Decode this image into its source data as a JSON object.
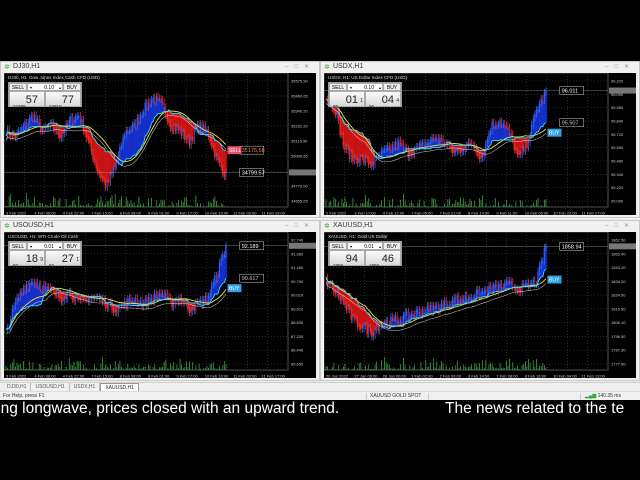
{
  "colors": {
    "bull": "#1430c8",
    "bear": "#c81414",
    "tenkan": "#f0e040",
    "kijun": "#40d8f0",
    "volume": "#40a040",
    "sell": "#e8506a",
    "buy": "#30a0e0"
  },
  "charts": [
    {
      "window_title": "DJ30,H1",
      "symbol_line": "DJ30, H1:  Dow Jones Index Cash CFD (USD)",
      "lot": "0.10",
      "sell_label": "SELL",
      "buy_label": "BUY",
      "sell_price": {
        "pre": "34799",
        "big": "57",
        "sup": ""
      },
      "buy_price": {
        "pre": "34810",
        "big": "77",
        "sup": ""
      },
      "y_axis": [
        "35575.90",
        "35460.65",
        "35346.20",
        "35231.20",
        "35115.90",
        "35000.60",
        "34885.30",
        "34770.00",
        "34655.25"
      ],
      "x_axis": [
        "3 Feb 2022",
        "4 Feb 06:00",
        "4 Feb 22:00",
        "7 Feb 15:00",
        "8 Feb 08:00",
        "9 Feb 01:00",
        "9 Feb 17:00",
        "10 Feb 10:00",
        "11 Feb 03:00",
        "11 Feb 19:00"
      ],
      "price_label": "34799.57",
      "order_label": "35175.58",
      "order_tag": "SELL",
      "order_type": "sell"
    },
    {
      "window_title": "USDX,H1",
      "symbol_line": "USDX, H1:  US Dollar Index CFD (USD)",
      "lot": "0.10",
      "sell_label": "SELL",
      "buy_label": "BUY",
      "sell_price": {
        "pre": "96",
        "big": "01",
        "sup": "1"
      },
      "buy_price": {
        "pre": "96",
        "big": "04",
        "sup": "4"
      },
      "y_axis": [
        "96.220",
        "96.090",
        "95.960",
        "95.840",
        "95.720",
        "95.590",
        "95.460",
        "95.340",
        "95.220",
        "95.090"
      ],
      "x_axis": [
        "2 Feb 2022",
        "3 Feb 17:00",
        "4 Feb 12:00",
        "7 Feb 05:00",
        "7 Feb 21:00",
        "8 Feb 14:00",
        "9 Feb 11:00",
        "10 Feb 05:00",
        "10 Feb 22:00",
        "11 Feb 17:00"
      ],
      "price_label": "96.011",
      "order_label": "95.507",
      "order_tag": "BUY",
      "order_type": "buy"
    },
    {
      "window_title": "USOUSD,H1",
      "symbol_line": "USOUSD, H1:  WTI Crude Oil Cash",
      "lot": "0.01",
      "sell_label": "SELL",
      "buy_label": "BUY",
      "sell_price": {
        "pre": "92",
        "big": "18",
        "sup": "9"
      },
      "buy_price": {
        "pre": "92",
        "big": "27",
        "sup": "1"
      },
      "y_axis": [
        "92.740",
        "91.960",
        "91.180",
        "90.790",
        "90.010",
        "89.610",
        "88.830",
        "87.230",
        "86.440",
        "85.650"
      ],
      "x_axis": [
        "3 Feb 2022",
        "4 Feb 06:00",
        "4 Feb 22:00",
        "7 Feb 15:00",
        "8 Feb 08:00",
        "9 Feb 01:00",
        "9 Feb 17:00",
        "10 Feb 10:00",
        "11 Feb 03:00",
        "11 Feb 17:00"
      ],
      "price_label": "92.189",
      "order_label": "90.617",
      "order_tag": "BUY",
      "order_type": "buy"
    },
    {
      "window_title": "XAUUSD,H1",
      "symbol_line": "XAUUSD, H1:  Gold US Dollar",
      "lot": "0.01",
      "sell_label": "SELL",
      "buy_label": "BUY",
      "sell_price": {
        "pre": "1858",
        "big": "94",
        "sup": ""
      },
      "buy_price": {
        "pre": "1859",
        "big": "46",
        "sup": ""
      },
      "y_axis": [
        "1862.50",
        "1853.40",
        "1843.20",
        "1834.20",
        "1824.50",
        "1815.50",
        "1806.10",
        "1796.50",
        "1787.30",
        "1777.90"
      ],
      "x_axis": [
        "26 Jan 2022",
        "27 Jan 06:00",
        "28 Jan 00:00",
        "1 Feb 02:00",
        "2 Feb 00:00",
        "3 Feb 14:00",
        "7 Feb 08:00",
        "8 Feb 16:00",
        "10 Feb 04:00",
        "11 Feb 13:00"
      ],
      "price_label": "1858.94",
      "order_label": "",
      "order_tag": "BUY",
      "order_type": "buy"
    }
  ],
  "tabs": [
    {
      "label": "DJ30,H1"
    },
    {
      "label": "USOUSD,H1"
    },
    {
      "label": "USDX,H1"
    },
    {
      "label": "XAUUSD,H1",
      "active": true
    }
  ],
  "status": {
    "help": "For Help, press F1",
    "symbol": "XAUUSD GOLD SPOT",
    "ping": "140.35 ms"
  },
  "subtitle": {
    "left": "ong longwave, prices closed with an upward trend.",
    "right": "The news related to the te"
  }
}
